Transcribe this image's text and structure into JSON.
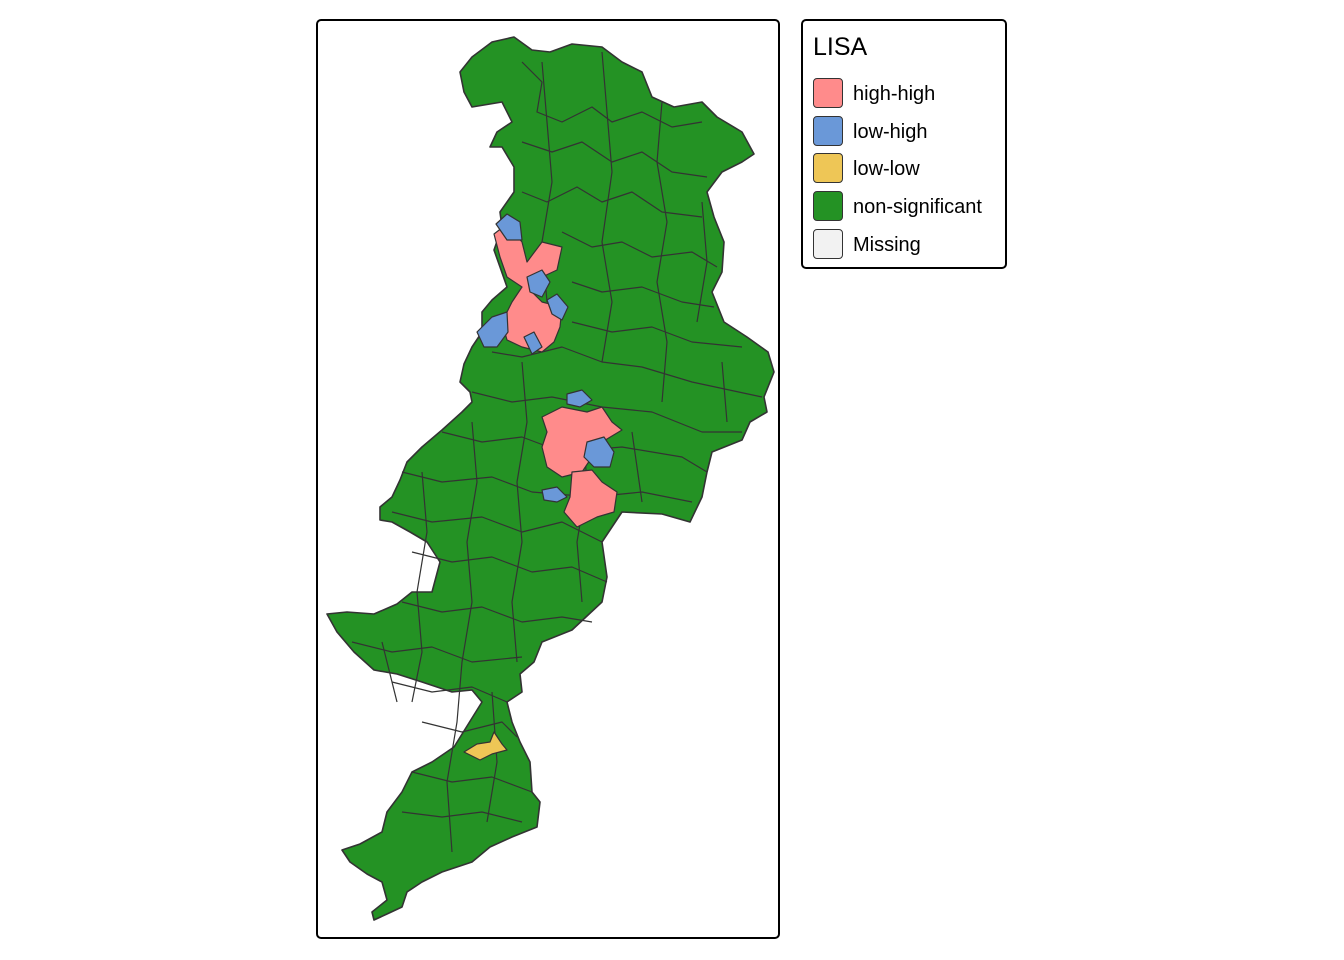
{
  "legend": {
    "title": "LISA",
    "items": [
      {
        "label": "high-high",
        "color": "#ff8b8b"
      },
      {
        "label": "low-high",
        "color": "#6a98d8"
      },
      {
        "label": "low-low",
        "color": "#eec656"
      },
      {
        "label": "non-significant",
        "color": "#249224"
      },
      {
        "label": "Missing",
        "color": "#f2f2f2"
      }
    ]
  },
  "map": {
    "fill_non_significant": "#249224",
    "border_color": "#333333"
  }
}
